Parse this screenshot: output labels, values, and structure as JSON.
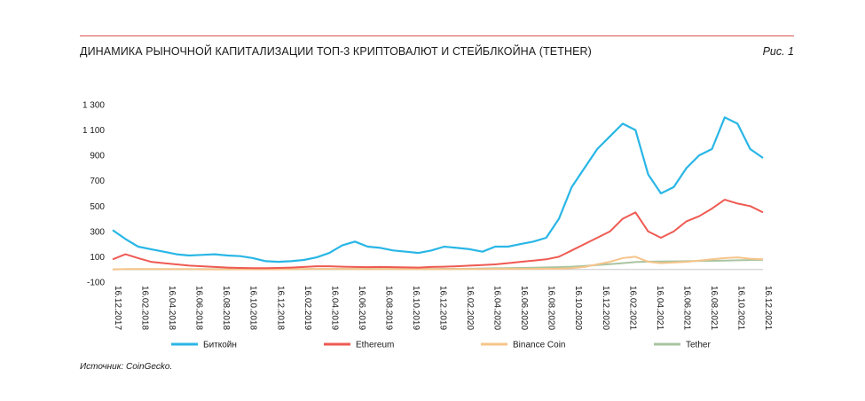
{
  "header": {
    "title": "ДИНАМИКА РЫНОЧНОЙ КАПИТАЛИЗАЦИИ ТОП-3 КРИПТОВАЛЮТ И СТЕЙБЛКОЙНА (TETHER)",
    "figure_label": "Рис. 1"
  },
  "source_note": "Источник: CoinGecko.",
  "colors": {
    "bitcoin": "#29b6e6",
    "ethereum": "#ee5a52",
    "binance": "#f6c48a",
    "tether": "#a9c4a0",
    "rule": "#d9534f",
    "baseline": "#c8c8c8"
  },
  "chart_data": {
    "type": "line",
    "title": "",
    "xlabel": "",
    "ylabel": "",
    "ylim": [
      -100,
      1300
    ],
    "y_ticks": [
      "1 300",
      "1 100",
      "900",
      "700",
      "500",
      "300",
      "100",
      "-100"
    ],
    "y_tick_values": [
      1300,
      1100,
      900,
      700,
      500,
      300,
      100,
      -100
    ],
    "x_ticks": [
      "16.12.2017",
      "16.02.2018",
      "16.04.2018",
      "16.06.2018",
      "16.08.2018",
      "16.10.2018",
      "16.12.2018",
      "16.02.2019",
      "16.04.2019",
      "16.06.2019",
      "16.08.2019",
      "16.10.2019",
      "16.12.2019",
      "16.02.2020",
      "16.04.2020",
      "16.06.2020",
      "16.08.2020",
      "16.10.2020",
      "16.12.2020",
      "16.02.2021",
      "16.04.2021",
      "16.06.2021",
      "16.08.2021",
      "16.10.2021",
      "16.12.2021"
    ],
    "grid": false,
    "legend_position": "bottom",
    "series": [
      {
        "name": "Биткойн",
        "key": "bitcoin",
        "values": [
          310,
          240,
          180,
          160,
          140,
          120,
          110,
          115,
          120,
          110,
          105,
          90,
          65,
          60,
          65,
          75,
          95,
          130,
          190,
          220,
          180,
          170,
          150,
          140,
          130,
          150,
          180,
          170,
          160,
          140,
          180,
          180,
          200,
          220,
          250,
          400,
          650,
          800,
          950,
          1050,
          1150,
          1100,
          750,
          600,
          650,
          800,
          900,
          950,
          1200,
          1150,
          950,
          880
        ]
      },
      {
        "name": "Ethereum",
        "key": "ethereum",
        "values": [
          80,
          120,
          90,
          60,
          50,
          40,
          30,
          25,
          20,
          15,
          12,
          10,
          10,
          12,
          15,
          20,
          25,
          25,
          22,
          20,
          18,
          20,
          18,
          16,
          15,
          20,
          22,
          25,
          30,
          35,
          40,
          50,
          60,
          70,
          80,
          100,
          150,
          200,
          250,
          300,
          400,
          450,
          300,
          250,
          300,
          380,
          420,
          480,
          550,
          520,
          500,
          450
        ]
      },
      {
        "name": "Binance Coin",
        "key": "binance",
        "values": [
          1,
          2,
          3,
          2,
          2,
          2,
          2,
          1,
          1,
          1,
          1,
          1,
          1,
          1,
          2,
          3,
          4,
          3,
          3,
          3,
          2,
          3,
          3,
          2,
          2,
          2,
          2,
          3,
          3,
          3,
          4,
          4,
          4,
          4,
          5,
          6,
          10,
          20,
          40,
          60,
          90,
          100,
          60,
          50,
          55,
          60,
          70,
          80,
          90,
          95,
          85,
          80
        ]
      },
      {
        "name": "Tether",
        "key": "tether",
        "values": [
          1,
          2,
          2,
          2,
          2,
          2,
          2,
          2,
          2,
          2,
          2,
          2,
          2,
          2,
          2,
          3,
          3,
          3,
          4,
          4,
          4,
          4,
          4,
          4,
          4,
          4,
          5,
          5,
          6,
          8,
          9,
          10,
          12,
          14,
          16,
          18,
          22,
          28,
          35,
          42,
          50,
          58,
          62,
          63,
          64,
          65,
          67,
          68,
          70,
          72,
          74,
          76
        ]
      }
    ]
  }
}
